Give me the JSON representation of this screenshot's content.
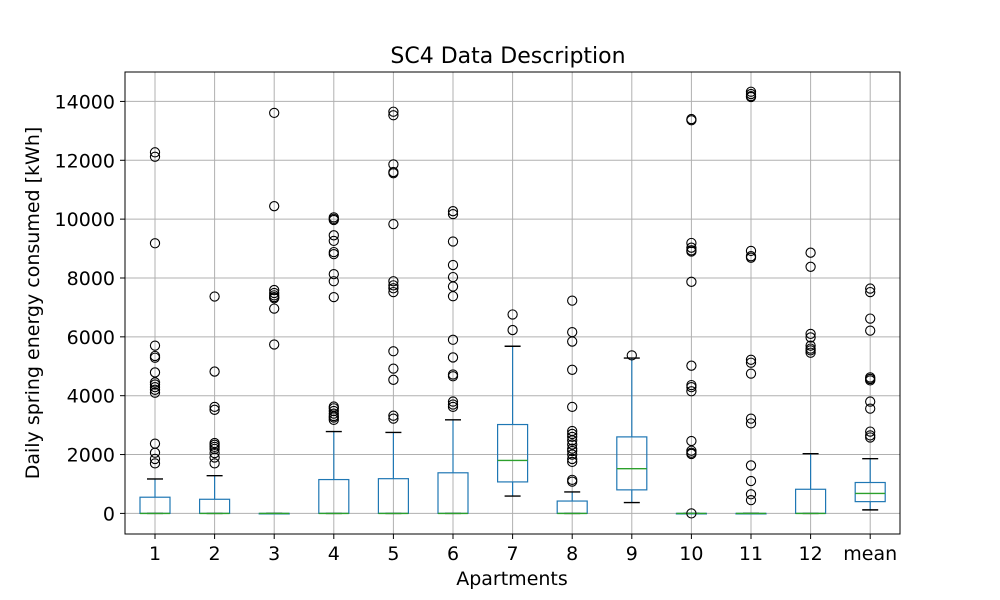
{
  "chart_data": {
    "type": "box",
    "title": "SC4 Data Description",
    "xlabel": "Apartments",
    "ylabel": "Daily spring energy consumed [kWh]",
    "ylim": [
      -700,
      15000
    ],
    "yticks": [
      0,
      2000,
      4000,
      6000,
      8000,
      10000,
      12000,
      14000
    ],
    "grid": true,
    "colors": {
      "box": "#1f77b4",
      "median": "#2ca02c",
      "whisker_cap": "#000000",
      "outlier": "#000000"
    },
    "categories": [
      "1",
      "2",
      "3",
      "4",
      "5",
      "6",
      "7",
      "8",
      "9",
      "10",
      "11",
      "12",
      "mean"
    ],
    "boxes": [
      {
        "label": "1",
        "whislo": 0,
        "q1": 0,
        "med": 0,
        "q3": 550,
        "whishi": 1170,
        "fliers": [
          12270,
          12120,
          9180,
          5700,
          5350,
          5290,
          4790,
          4450,
          4380,
          4290,
          4200,
          4100,
          2370,
          2060,
          1850,
          1700
        ]
      },
      {
        "label": "2",
        "whislo": 0,
        "q1": 0,
        "med": 0,
        "q3": 480,
        "whishi": 1280,
        "fliers": [
          7370,
          4820,
          3620,
          3520,
          2390,
          2330,
          2260,
          2190,
          2050,
          1900,
          1700
        ]
      },
      {
        "label": "3",
        "whislo": 0,
        "q1": 0,
        "med": 0,
        "q3": 0,
        "whishi": 0,
        "fliers": [
          13610,
          10440,
          7590,
          7490,
          7410,
          7350,
          7310,
          6960,
          5740
        ]
      },
      {
        "label": "4",
        "whislo": 0,
        "q1": 0,
        "med": 0,
        "q3": 1150,
        "whishi": 2780,
        "fliers": [
          10060,
          10010,
          9970,
          9450,
          9260,
          8880,
          8810,
          8130,
          7890,
          7350,
          3630,
          3570,
          3480,
          3390,
          3310,
          3260,
          3180
        ]
      },
      {
        "label": "5",
        "whislo": 0,
        "q1": 0,
        "med": 0,
        "q3": 1180,
        "whishi": 2750,
        "fliers": [
          13650,
          13530,
          11860,
          11600,
          11560,
          9830,
          7890,
          7750,
          7650,
          7520,
          5510,
          4920,
          4540,
          3320,
          3220
        ]
      },
      {
        "label": "6",
        "whislo": 0,
        "q1": 0,
        "med": 0,
        "q3": 1380,
        "whishi": 3180,
        "fliers": [
          10270,
          10170,
          9240,
          8440,
          8030,
          7710,
          7380,
          5900,
          5300,
          4720,
          4660,
          3800,
          3700,
          3620
        ]
      },
      {
        "label": "7",
        "whislo": 590,
        "q1": 1070,
        "med": 1800,
        "q3": 3020,
        "whishi": 5680,
        "fliers": [
          6760,
          6230
        ]
      },
      {
        "label": "8",
        "whislo": 0,
        "q1": 0,
        "med": 0,
        "q3": 420,
        "whishi": 730,
        "fliers": [
          7230,
          6160,
          5840,
          4880,
          3620,
          2800,
          2700,
          2600,
          2480,
          2340,
          2200,
          2120,
          2000,
          1850,
          1750,
          1140,
          1080
        ]
      },
      {
        "label": "9",
        "whislo": 370,
        "q1": 800,
        "med": 1520,
        "q3": 2600,
        "whishi": 5280,
        "fliers": [
          5370
        ]
      },
      {
        "label": "10",
        "whislo": 0,
        "q1": 0,
        "med": 0,
        "q3": 0,
        "whishi": 0,
        "fliers": [
          13400,
          13360,
          9190,
          9030,
          8940,
          8900,
          7870,
          5020,
          4360,
          4290,
          4150,
          2460,
          2130,
          2060,
          2020,
          0
        ]
      },
      {
        "label": "11",
        "whislo": 0,
        "q1": 0,
        "med": 0,
        "q3": 0,
        "whishi": 0,
        "fliers": [
          14330,
          14250,
          14180,
          14150,
          8920,
          8740,
          8690,
          5220,
          5120,
          4750,
          3220,
          3060,
          1630,
          1100,
          650,
          450
        ]
      },
      {
        "label": "12",
        "whislo": 0,
        "q1": 0,
        "med": 0,
        "q3": 820,
        "whishi": 2030,
        "fliers": [
          8860,
          8380,
          6100,
          5980,
          5700,
          5600,
          5540,
          5460
        ]
      },
      {
        "label": "mean",
        "whislo": 120,
        "q1": 400,
        "med": 680,
        "q3": 1050,
        "whishi": 1860,
        "fliers": [
          7640,
          7520,
          6620,
          6210,
          4620,
          4570,
          4520,
          3800,
          3560,
          2780,
          2650,
          2580
        ]
      }
    ]
  }
}
